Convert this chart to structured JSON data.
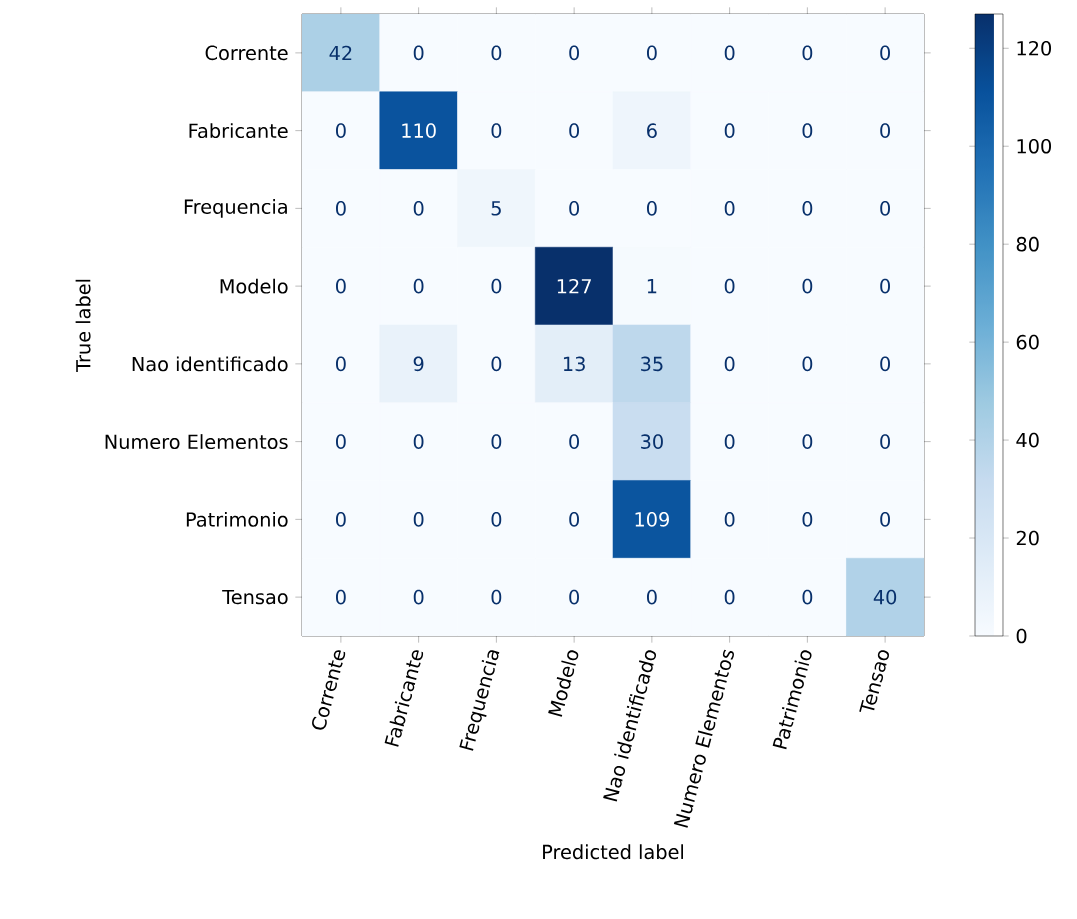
{
  "chart_data": {
    "type": "heatmap",
    "xlabel": "Predicted label",
    "ylabel": "True label",
    "categories": [
      "Corrente",
      "Fabricante",
      "Frequencia",
      "Modelo",
      "Nao identificado",
      "Numero Elementos",
      "Patrimonio",
      "Tensao"
    ],
    "y_categories": [
      "Corrente",
      "Fabricante",
      "Frequencia",
      "Modelo",
      "Nao identificado",
      "Numero Elementos",
      "Patrimonio",
      "Tensao"
    ],
    "cells": [
      [
        42,
        0,
        0,
        0,
        0,
        0,
        0,
        0
      ],
      [
        0,
        110,
        0,
        0,
        6,
        0,
        0,
        0
      ],
      [
        0,
        0,
        5,
        0,
        0,
        0,
        0,
        0
      ],
      [
        0,
        0,
        0,
        127,
        1,
        0,
        0,
        0
      ],
      [
        0,
        9,
        0,
        13,
        35,
        0,
        0,
        0
      ],
      [
        0,
        0,
        0,
        0,
        30,
        0,
        0,
        0
      ],
      [
        0,
        0,
        0,
        0,
        109,
        0,
        0,
        0
      ],
      [
        0,
        0,
        0,
        0,
        0,
        0,
        0,
        40
      ]
    ],
    "clim": [
      0,
      127
    ],
    "cticks": [
      0,
      20,
      40,
      60,
      80,
      100,
      120
    ],
    "data_labels": true
  }
}
